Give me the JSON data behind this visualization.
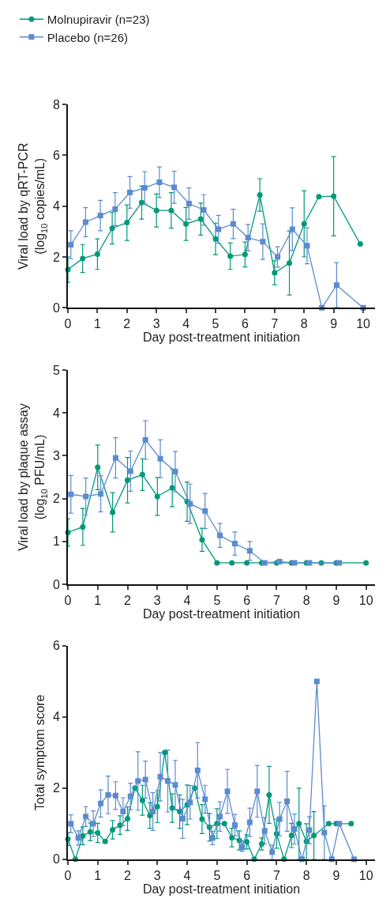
{
  "chart_data": [
    {
      "type": "line",
      "xlabel": "Day post-treatment initiation",
      "ylabel": "Viral load by qRT-PCR\n(log$_{10}$ copies/mL)",
      "xlim": [
        0,
        10.4
      ],
      "xticks": [
        0,
        1,
        2,
        3,
        4,
        5,
        6,
        7,
        8,
        9,
        10
      ],
      "ylim": [
        0,
        8
      ],
      "yticks": [
        0,
        2,
        4,
        6,
        8
      ],
      "legend": "top left",
      "series": [
        {
          "name": "Molnupiravir (n=23)",
          "color": "#00997a",
          "marker": "circle",
          "x": [
            0,
            0.5,
            1,
            1.5,
            2,
            2.5,
            3,
            3.5,
            4,
            4.5,
            5,
            5.5,
            6,
            6.5,
            7,
            7.5,
            8,
            8.5,
            9,
            9.9
          ],
          "values": [
            1.5,
            1.94,
            2.11,
            3.13,
            3.35,
            4.14,
            3.83,
            3.83,
            3.3,
            3.49,
            2.71,
            2.03,
            2.1,
            4.44,
            1.38,
            1.76,
            3.3,
            4.37,
            4.39,
            2.51
          ],
          "errors": [
            0.5,
            0.55,
            0.6,
            0.62,
            0.7,
            0.65,
            0.65,
            0.7,
            0.65,
            0.63,
            0.62,
            0.52,
            0.49,
            0.64,
            0.47,
            1.26,
            1.3,
            null,
            1.56,
            null
          ]
        },
        {
          "name": "Placebo (n=26)",
          "color": "#5b8bd0",
          "marker": "square",
          "x": [
            0.1,
            0.6,
            1.1,
            1.6,
            2.1,
            2.6,
            3.1,
            3.6,
            4.1,
            4.6,
            5.1,
            5.6,
            6.1,
            6.6,
            7.1,
            7.6,
            8.1,
            8.6,
            9.1,
            10
          ],
          "values": [
            2.48,
            3.37,
            3.63,
            3.88,
            4.54,
            4.72,
            4.94,
            4.74,
            4.1,
            3.85,
            3.09,
            3.3,
            2.76,
            2.6,
            2.0,
            3.09,
            2.44,
            0,
            0.89,
            0
          ],
          "errors": [
            0.55,
            0.57,
            0.6,
            0.65,
            0.62,
            0.64,
            0.6,
            0.63,
            0.62,
            0.6,
            0.55,
            0.58,
            0.52,
            0.7,
            0.4,
            0.84,
            0.71,
            null,
            0.88,
            null
          ]
        }
      ]
    },
    {
      "type": "line",
      "xlabel": "Day post-treatment initiation",
      "ylabel": "Viral load by plaque assay\n(log$_{10}$ PFU/mL)",
      "xlim": [
        0,
        10.3
      ],
      "xticks": [
        0,
        1,
        2,
        3,
        4,
        5,
        6,
        7,
        8,
        9,
        10
      ],
      "ylim": [
        0,
        5
      ],
      "yticks": [
        0,
        1,
        2,
        3,
        4,
        5
      ],
      "series": [
        {
          "color": "#00997a",
          "marker": "circle",
          "x": [
            0,
            0.5,
            1,
            1.5,
            2,
            2.5,
            3,
            3.5,
            4,
            4.5,
            5,
            5.5,
            6,
            6.5,
            7,
            7.5,
            8,
            8.5,
            9,
            10
          ],
          "values": [
            1.21,
            1.34,
            2.73,
            1.68,
            2.43,
            2.56,
            2.05,
            2.25,
            1.93,
            1.04,
            0.5,
            0.5,
            0.5,
            0.5,
            0.5,
            0.5,
            0.5,
            0.5,
            0.5,
            0.5
          ],
          "errors": [
            0.32,
            0.43,
            0.52,
            0.46,
            0.53,
            0.37,
            0.44,
            0.44,
            0.46,
            0.27,
            null,
            null,
            null,
            null,
            null,
            null,
            null,
            null,
            null,
            null
          ]
        },
        {
          "color": "#5b8bd0",
          "marker": "square",
          "x": [
            0.1,
            0.6,
            1.1,
            1.6,
            2.1,
            2.6,
            3.1,
            3.6,
            4.1,
            4.6,
            5.1,
            5.6,
            6.1,
            6.6,
            7.1,
            7.6,
            8.1,
            9.1
          ],
          "values": [
            2.1,
            2.05,
            2.11,
            2.95,
            2.64,
            3.37,
            2.93,
            2.63,
            1.88,
            1.71,
            1.14,
            0.95,
            0.78,
            0.5,
            0.53,
            0.5,
            0.5,
            0.5
          ],
          "errors": [
            0.44,
            0.43,
            0.42,
            0.47,
            0.47,
            0.45,
            0.44,
            0.47,
            0.46,
            0.41,
            0.28,
            0.27,
            0.22,
            null,
            null,
            null,
            null,
            null
          ]
        }
      ]
    },
    {
      "type": "line",
      "xlabel": "Day post-treatment initiation",
      "ylabel": "Total symptom score",
      "xlim": [
        0,
        10.3
      ],
      "xticks": [
        0,
        1,
        2,
        3,
        4,
        5,
        6,
        7,
        8,
        9,
        10
      ],
      "ylim": [
        0,
        6
      ],
      "yticks": [
        0,
        2,
        4,
        6
      ],
      "series": [
        {
          "color": "#00997a",
          "marker": "circle",
          "x": [
            0,
            0.25,
            0.5,
            0.75,
            1,
            1.25,
            1.5,
            1.75,
            2,
            2.25,
            2.5,
            2.75,
            3,
            3.25,
            3.5,
            3.75,
            4,
            4.25,
            4.5,
            4.75,
            5,
            5.25,
            5.5,
            5.75,
            6,
            6.25,
            6.5,
            6.75,
            7,
            7.25,
            7.5,
            7.75,
            8,
            8.25,
            8.75,
            9,
            9.5
          ],
          "values": [
            0.57,
            0,
            0.66,
            0.77,
            0.74,
            0.5,
            0.83,
            0.96,
            1.14,
            2.0,
            1.66,
            1.23,
            1.48,
            3.0,
            1.44,
            1.34,
            1.53,
            2.0,
            1.13,
            0.9,
            1.0,
            1.0,
            0.61,
            0.53,
            0.49,
            0,
            0.43,
            1.81,
            0.72,
            0,
            0.67,
            1.0,
            0.5,
            0.67,
            1.0,
            1.0,
            1.0
          ],
          "errors": [
            0.18,
            null,
            0.25,
            0.25,
            0.27,
            null,
            0.26,
            0.26,
            0.33,
            null,
            0.42,
            0.36,
            0.45,
            null,
            0.4,
            0.47,
            0.56,
            null,
            0.41,
            0.39,
            0.42,
            null,
            0.26,
            0.27,
            0.2,
            null,
            0.17,
            0.8,
            0.41,
            null,
            0.34,
            1.0,
            0.5,
            0.67,
            null,
            null,
            null
          ]
        },
        {
          "color": "#5b8bd0",
          "marker": "square",
          "x": [
            0.1,
            0.35,
            0.6,
            0.85,
            1.1,
            1.35,
            1.6,
            1.85,
            2.1,
            2.35,
            2.6,
            2.85,
            3.1,
            3.35,
            3.6,
            3.85,
            4.1,
            4.35,
            4.6,
            4.85,
            5.1,
            5.35,
            5.6,
            5.85,
            6.1,
            6.35,
            6.6,
            6.85,
            7.1,
            7.35,
            7.6,
            7.85,
            8.1,
            8.35,
            8.6,
            8.85,
            9.1,
            9.6
          ],
          "values": [
            1.0,
            0.6,
            1.2,
            1.0,
            1.57,
            1.81,
            1.79,
            1.34,
            1.77,
            2.2,
            2.24,
            1.34,
            2.32,
            2.2,
            2.09,
            1.14,
            1.6,
            2.5,
            1.69,
            0.6,
            1.2,
            1.91,
            0.96,
            0.34,
            1.04,
            1.91,
            0.8,
            0.2,
            1.13,
            1.63,
            0.85,
            0,
            0.82,
            5.0,
            0.75,
            0,
            1.0,
            0
          ],
          "errors": [
            0.25,
            0.2,
            0.28,
            0.36,
            0.38,
            0.53,
            0.39,
            0.39,
            0.37,
            0.82,
            0.52,
            0.53,
            0.68,
            0.87,
            0.69,
            0.55,
            0.47,
            0.78,
            0.39,
            0.19,
            0.41,
            0.62,
            0.3,
            0.12,
            0.4,
            0.73,
            0.37,
            0.2,
            0.47,
            0.84,
            0.42,
            null,
            0.38,
            null,
            0.75,
            null,
            null,
            null
          ]
        }
      ]
    }
  ]
}
